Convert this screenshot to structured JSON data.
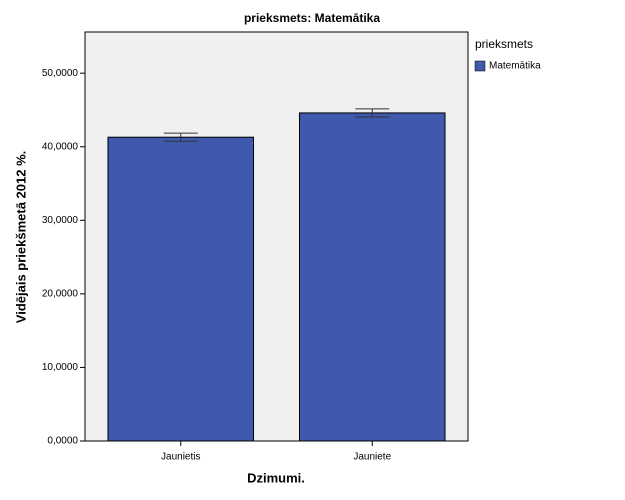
{
  "chart_data": {
    "type": "bar",
    "title": "prieksmets: Matemātika",
    "x_label": "Dzimumi.",
    "y_label": "Vidējais priekšmetā 2012 %.",
    "categories": [
      "Jaunietis",
      "Jauniete"
    ],
    "series": [
      {
        "name": "Matemātika",
        "color": "#3f59ac",
        "values": [
          41.3,
          44.6
        ],
        "errors": [
          0.55,
          0.55
        ]
      }
    ],
    "legend_title": "prieksmets",
    "ylim": [
      0,
      55.6
    ],
    "yticks": [
      {
        "value": 0,
        "label": "0,0000"
      },
      {
        "value": 10,
        "label": "10,0000"
      },
      {
        "value": 20,
        "label": "20,0000"
      },
      {
        "value": 30,
        "label": "30,0000"
      },
      {
        "value": 40,
        "label": "40,0000"
      },
      {
        "value": 50,
        "label": "50,0000"
      }
    ]
  }
}
